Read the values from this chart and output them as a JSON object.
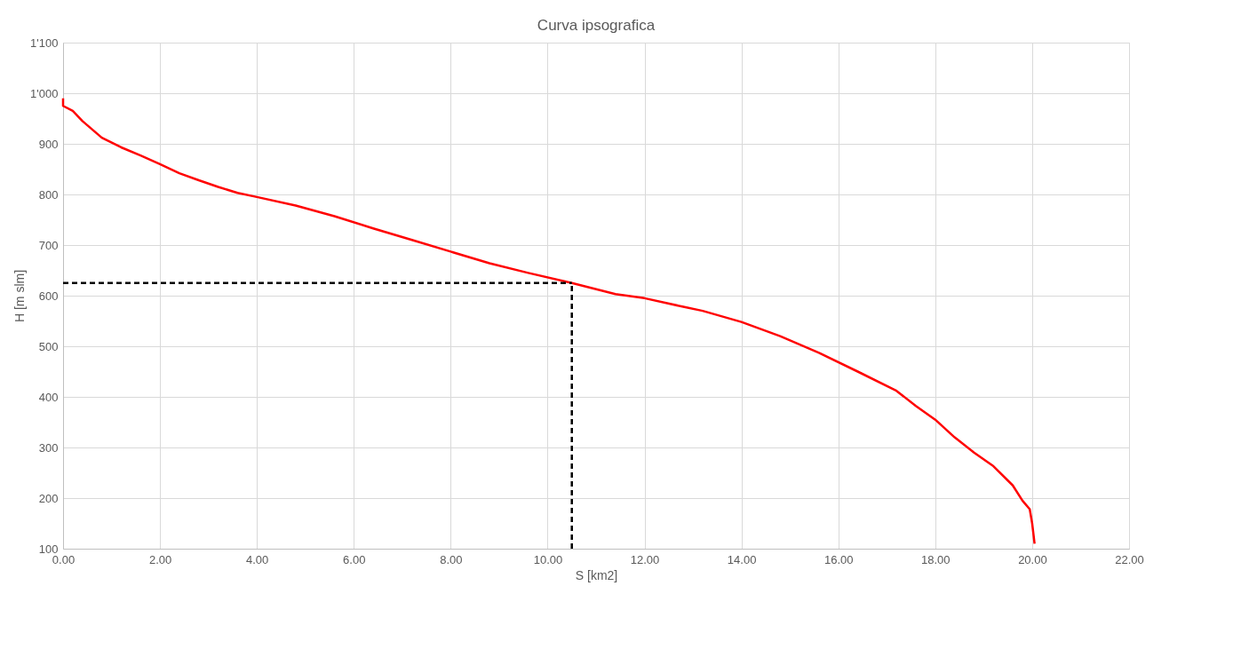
{
  "chart_data": {
    "type": "line",
    "title": "Curva ipsografica",
    "xlabel": "S [km2]",
    "ylabel": "H [m slm]",
    "xlim": [
      0,
      22
    ],
    "ylim": [
      100,
      1100
    ],
    "xticks": [
      {
        "value": 0,
        "label": "0.00"
      },
      {
        "value": 2,
        "label": "2.00"
      },
      {
        "value": 4,
        "label": "4.00"
      },
      {
        "value": 6,
        "label": "6.00"
      },
      {
        "value": 8,
        "label": "8.00"
      },
      {
        "value": 10,
        "label": "10.00"
      },
      {
        "value": 12,
        "label": "12.00"
      },
      {
        "value": 14,
        "label": "14.00"
      },
      {
        "value": 16,
        "label": "16.00"
      },
      {
        "value": 18,
        "label": "18.00"
      },
      {
        "value": 20,
        "label": "20.00"
      },
      {
        "value": 22,
        "label": "22.00"
      }
    ],
    "yticks": [
      100,
      200,
      300,
      400,
      500,
      600,
      700,
      800,
      900,
      {
        "value": 1000,
        "label": "1'000"
      },
      {
        "value": 1100,
        "label": "1'100"
      }
    ],
    "grid": true,
    "marker": "none",
    "line_style": "solid",
    "series": [
      {
        "color": "#ff0000",
        "x": [
          0,
          0,
          0.2,
          0.4,
          0.8,
          1.2,
          1.6,
          2.0,
          2.4,
          2.8,
          3.2,
          3.6,
          4.0,
          4.8,
          5.6,
          6.4,
          7.2,
          8.0,
          8.8,
          9.6,
          10.5,
          11.4,
          12.0,
          12.8,
          13.2,
          14.0,
          14.8,
          15.6,
          16.4,
          17.2,
          17.6,
          18.0,
          18.4,
          18.8,
          19.2,
          19.6,
          19.8,
          19.95,
          20.0,
          20.05
        ],
        "values": [
          990,
          975,
          965,
          945,
          912,
          893,
          877,
          860,
          842,
          828,
          815,
          803,
          795,
          778,
          757,
          733,
          710,
          687,
          664,
          645,
          625,
          603,
          595,
          578,
          570,
          548,
          520,
          487,
          450,
          412,
          382,
          355,
          320,
          290,
          263,
          225,
          195,
          178,
          150,
          110
        ]
      }
    ],
    "ref_lines": [
      {
        "axis": "x",
        "value": 10.5,
        "color": "#000000",
        "line_style": "dashed"
      },
      {
        "axis": "y",
        "value": 625,
        "color": "#000000",
        "line_style": "dashed"
      }
    ]
  }
}
